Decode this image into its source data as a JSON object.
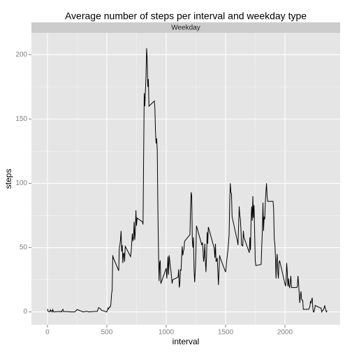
{
  "chart_data": {
    "type": "line",
    "title": "Average number of steps per interval and weekday type",
    "facet": "Weekday",
    "xlabel": "interval",
    "ylabel": "steps",
    "color": "#000000",
    "grid": true,
    "xlim": [
      -135,
      2465
    ],
    "xticks": [
      0,
      500,
      1000,
      1500,
      2000
    ],
    "ylim": [
      -10,
      217
    ],
    "yticks": [
      0,
      50,
      100,
      150,
      200
    ],
    "x": [
      0,
      5,
      10,
      15,
      20,
      25,
      30,
      35,
      40,
      45,
      50,
      55,
      100,
      105,
      110,
      115,
      120,
      125,
      130,
      135,
      140,
      145,
      150,
      200,
      230,
      250,
      300,
      330,
      350,
      400,
      420,
      430,
      440,
      450,
      455,
      500,
      505,
      510,
      515,
      520,
      525,
      530,
      535,
      540,
      545,
      550,
      555,
      600,
      605,
      610,
      615,
      620,
      625,
      630,
      635,
      640,
      645,
      650,
      655,
      700,
      705,
      710,
      715,
      720,
      725,
      730,
      735,
      740,
      745,
      750,
      755,
      800,
      805,
      810,
      815,
      820,
      825,
      830,
      835,
      840,
      845,
      850,
      855,
      900,
      905,
      910,
      915,
      920,
      925,
      930,
      935,
      940,
      945,
      950,
      955,
      1000,
      1005,
      1010,
      1015,
      1020,
      1025,
      1030,
      1035,
      1040,
      1045,
      1050,
      1055,
      1100,
      1105,
      1110,
      1115,
      1120,
      1125,
      1130,
      1135,
      1140,
      1145,
      1150,
      1155,
      1200,
      1205,
      1210,
      1215,
      1220,
      1225,
      1230,
      1235,
      1240,
      1245,
      1250,
      1255,
      1300,
      1305,
      1310,
      1315,
      1320,
      1325,
      1330,
      1335,
      1340,
      1345,
      1350,
      1355,
      1400,
      1405,
      1410,
      1415,
      1420,
      1425,
      1430,
      1435,
      1440,
      1445,
      1450,
      1455,
      1500,
      1505,
      1510,
      1515,
      1520,
      1525,
      1530,
      1535,
      1540,
      1545,
      1550,
      1555,
      1600,
      1605,
      1610,
      1615,
      1620,
      1625,
      1630,
      1635,
      1640,
      1645,
      1650,
      1655,
      1700,
      1705,
      1710,
      1715,
      1720,
      1725,
      1730,
      1735,
      1740,
      1745,
      1750,
      1755,
      1800,
      1805,
      1810,
      1815,
      1820,
      1825,
      1830,
      1835,
      1840,
      1845,
      1850,
      1855,
      1900,
      1905,
      1910,
      1915,
      1920,
      1925,
      1930,
      1935,
      1940,
      1945,
      1950,
      1955,
      2000,
      2005,
      2010,
      2015,
      2020,
      2025,
      2030,
      2035,
      2040,
      2045,
      2050,
      2055,
      2100,
      2105,
      2110,
      2115,
      2120,
      2125,
      2130,
      2135,
      2140,
      2145,
      2150,
      2155,
      2200,
      2205,
      2210,
      2215,
      2220,
      2225,
      2230,
      2235,
      2240,
      2245,
      2250,
      2255,
      2300,
      2305,
      2310,
      2315,
      2320,
      2325,
      2330,
      2335,
      2340,
      2345,
      2350,
      2355
    ],
    "values": [
      2.3,
      0.5,
      0.2,
      0.2,
      0.1,
      1.6,
      0.6,
      1,
      0,
      1.8,
      0.4,
      0,
      0.4,
      0,
      0.2,
      0.4,
      0,
      1.4,
      2,
      0.2,
      0.2,
      0.3,
      0.3,
      0,
      0,
      1.8,
      0,
      0.5,
      0,
      0.4,
      0.4,
      3.3,
      2.9,
      2,
      1.2,
      0,
      1.6,
      3,
      2.2,
      3.7,
      3.6,
      3.9,
      7,
      14,
      17,
      44,
      42,
      32,
      50,
      52,
      56,
      63,
      47,
      52,
      38,
      45,
      46,
      39,
      51,
      43,
      47,
      54,
      61,
      55,
      58,
      70,
      56,
      62,
      79,
      67,
      73,
      70,
      68,
      120,
      170,
      160,
      172,
      183,
      205,
      197,
      175,
      181,
      160,
      164,
      158,
      140,
      131,
      135,
      125,
      80,
      49,
      24,
      38,
      40,
      22,
      34,
      26,
      33,
      43,
      29,
      44,
      40,
      35,
      32,
      27,
      22,
      25,
      27,
      33,
      19,
      22,
      33,
      32,
      42,
      51,
      44,
      47,
      49,
      55,
      60,
      80,
      93,
      90,
      56,
      50,
      58,
      32,
      23,
      32,
      45,
      67,
      52,
      54,
      48,
      39,
      43,
      53,
      40,
      31,
      43,
      62,
      53,
      66,
      51,
      49,
      42,
      53,
      39,
      40,
      42,
      32,
      21,
      32,
      44,
      42,
      31,
      35,
      40,
      44,
      48,
      54,
      60,
      85,
      100,
      93,
      92,
      74,
      55,
      52,
      67,
      82,
      75,
      72,
      63,
      52,
      52,
      51,
      63,
      58,
      46,
      58,
      48,
      71,
      82,
      71,
      90,
      73,
      83,
      62,
      40,
      36,
      37,
      51,
      63,
      85,
      63,
      74,
      72,
      85,
      93,
      100,
      90,
      86,
      86,
      80,
      57,
      53,
      44,
      26,
      40,
      45,
      31,
      26,
      38,
      40,
      22,
      20,
      24,
      38,
      31,
      20,
      26,
      20,
      19,
      23,
      28,
      19,
      19,
      20,
      28,
      22,
      15,
      7,
      12,
      16,
      10,
      9,
      9,
      2,
      2,
      3,
      4,
      8,
      7,
      9,
      11,
      3,
      0,
      0,
      2,
      5,
      3,
      3,
      0,
      1,
      1,
      2,
      3,
      5,
      3,
      1,
      0,
      1
    ]
  }
}
